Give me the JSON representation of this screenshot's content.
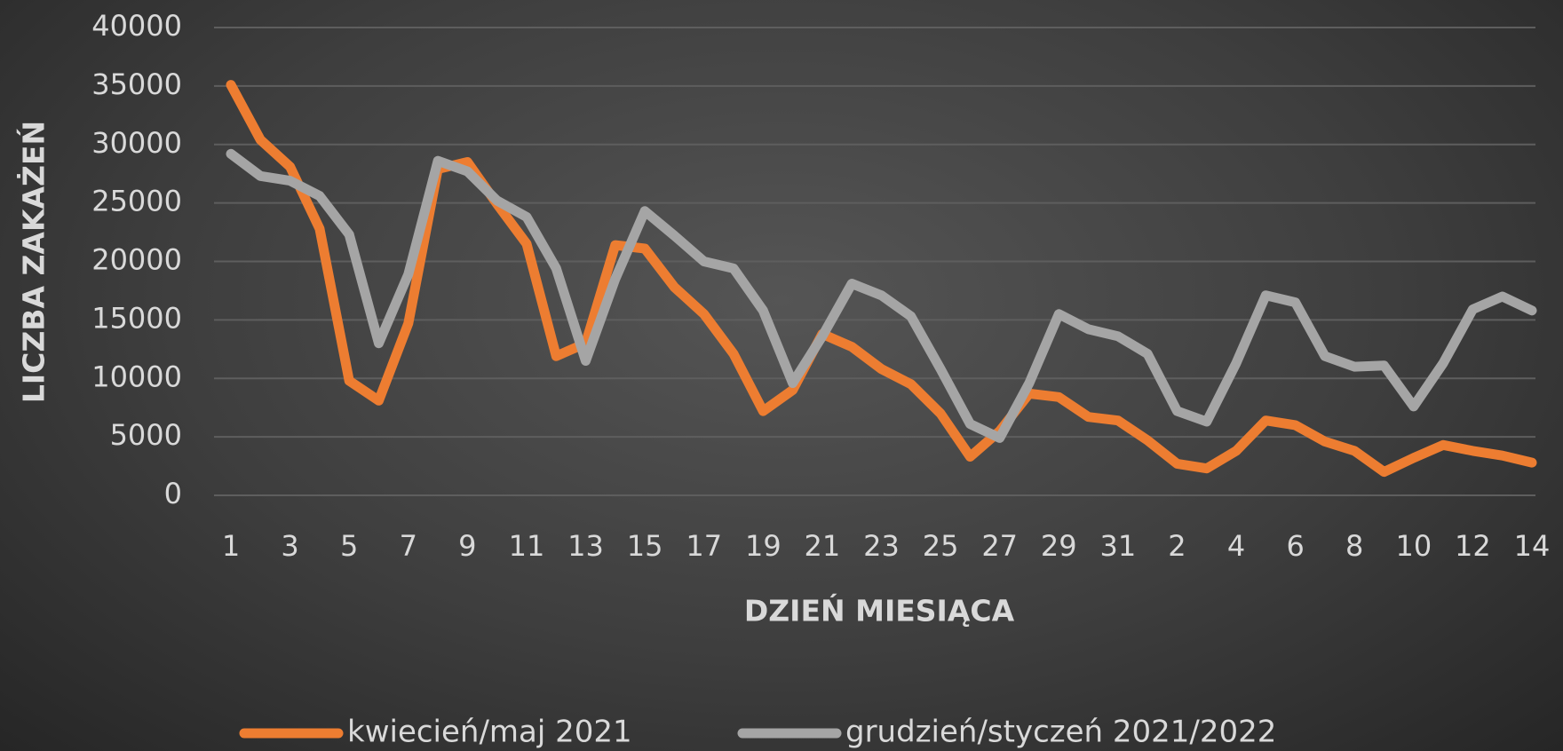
{
  "chart_data": {
    "type": "line",
    "x_label": "DZIEŃ MIESIĄCA",
    "y_label": "LICZBA ZAKAŻEŃ",
    "categories": [
      "1",
      null,
      "3",
      null,
      "5",
      null,
      "7",
      null,
      "9",
      null,
      "11",
      null,
      "13",
      null,
      "15",
      null,
      "17",
      null,
      "19",
      null,
      "21",
      null,
      "23",
      null,
      "25",
      null,
      "27",
      null,
      "29",
      null,
      "31",
      null,
      "2",
      null,
      "4",
      null,
      "6",
      null,
      "8",
      null,
      "10",
      null,
      "12",
      null,
      "14"
    ],
    "series": [
      {
        "name": "kwiecień/maj 2021",
        "color": "#ed7d31",
        "values": [
          35100,
          30400,
          28100,
          22800,
          9800,
          8100,
          14700,
          27900,
          28500,
          24900,
          21500,
          11900,
          13000,
          21400,
          21100,
          17800,
          15500,
          12100,
          7200,
          9000,
          13800,
          12700,
          10800,
          9500,
          7000,
          3300,
          5500,
          8700,
          8400,
          6700,
          6400,
          4700,
          2700,
          2300,
          3800,
          6400,
          6000,
          4600,
          3800,
          2000,
          3200,
          4300,
          3800,
          3400,
          2800
        ]
      },
      {
        "name": "grudzień/styczeń 2021/2022",
        "color": "#a5a5a5",
        "values": [
          29200,
          27300,
          26900,
          25600,
          22300,
          13000,
          18900,
          28600,
          27700,
          25200,
          23800,
          19400,
          11500,
          18500,
          24300,
          22200,
          20000,
          19400,
          15800,
          9600,
          13600,
          18100,
          17100,
          15300,
          10800,
          6100,
          4900,
          9600,
          15500,
          14200,
          13600,
          12100,
          7200,
          6300,
          11300,
          17100,
          16500,
          11900,
          11000,
          11100,
          7600,
          11300,
          15900,
          17000,
          15800
        ]
      }
    ],
    "ylim": [
      0,
      40000
    ],
    "yticks": [
      0,
      5000,
      10000,
      15000,
      20000,
      25000,
      30000,
      35000,
      40000
    ],
    "grid": true,
    "legend": "bottom"
  }
}
